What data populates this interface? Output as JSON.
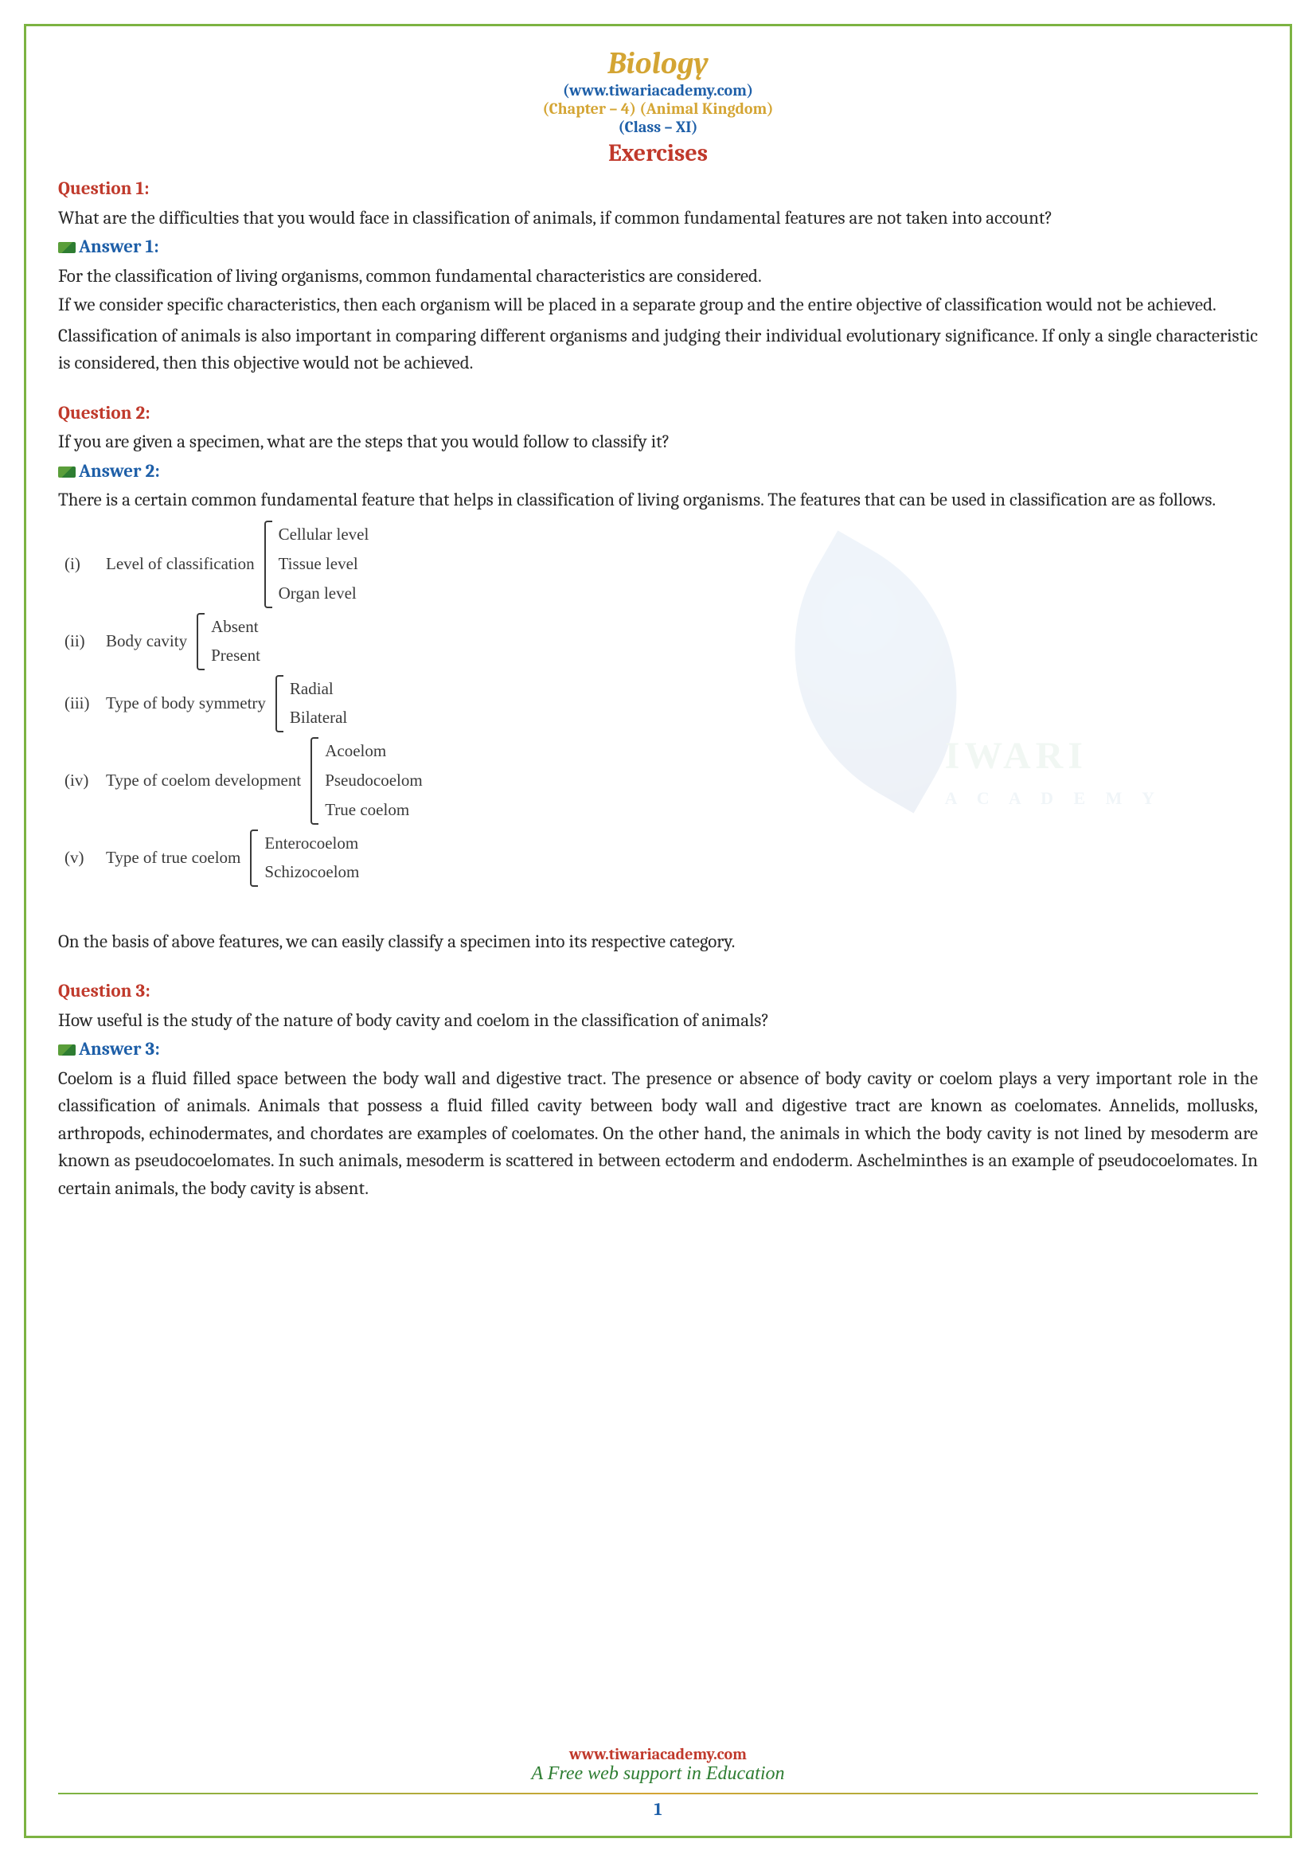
{
  "header": {
    "title": "Biology",
    "url": "(www.tiwariacademy.com)",
    "chapter": "(Chapter – 4) (Animal Kingdom)",
    "class": "(Class – XI)",
    "section": "Exercises"
  },
  "q1": {
    "label": "Question 1:",
    "text": "What are the difficulties that you would face in classification of animals, if common fundamental features are not taken into account?",
    "answer_label": "Answer 1:",
    "p1": "For the classification of living organisms, common fundamental characteristics are considered.",
    "p2": "If we consider specific characteristics, then each organism will be placed in a separate group and the entire objective of classification would not be achieved.",
    "p3": "Classification of animals is also important in comparing different organisms and judging their individual evolutionary significance. If only a single characteristic is considered, then this objective would not be achieved."
  },
  "q2": {
    "label": "Question 2:",
    "text": "If you are given a specimen, what are the steps that you would follow to classify it?",
    "answer_label": "Answer 2:",
    "p1": "There is a certain common fundamental feature that helps in classification of living organisms. The features that can be used in classification are as follows.",
    "classification": [
      {
        "num": "(i)",
        "label": "Level of classification",
        "items": [
          "Cellular level",
          "Tissue level",
          "Organ level"
        ]
      },
      {
        "num": "(ii)",
        "label": "Body cavity",
        "items": [
          "Absent",
          "Present"
        ]
      },
      {
        "num": "(iii)",
        "label": "Type of body symmetry",
        "items": [
          "Radial",
          "Bilateral"
        ]
      },
      {
        "num": "(iv)",
        "label": "Type of coelom development",
        "items": [
          "Acoelom",
          "Pseudocoelom",
          "True coelom"
        ]
      },
      {
        "num": "(v)",
        "label": "Type of true coelom",
        "items": [
          "Enterocoelom",
          "Schizocoelom"
        ]
      }
    ],
    "p2": "On the basis of above features, we can easily classify a specimen into its respective category."
  },
  "q3": {
    "label": "Question 3:",
    "text": "How useful is the study of the nature of body cavity and coelom in the classification of animals?",
    "answer_label": "Answer 3:",
    "p1": "Coelom is a fluid filled space between the body wall and digestive tract. The presence or absence of body cavity or coelom plays a very important role in the classification of animals. Animals that possess a fluid filled cavity between body wall and digestive tract are known as coelomates. Annelids, mollusks, arthropods, echinodermates, and chordates are examples of coelomates. On the other hand, the animals in which the body cavity is not lined by mesoderm are known as pseudocoelomates. In such animals, mesoderm is scattered in between ectoderm and endoderm. Aschelminthes is an example of pseudocoelomates. In certain animals, the body cavity is absent."
  },
  "watermark": {
    "line1": "IWARI",
    "line2": "A C A D E M Y"
  },
  "footer": {
    "url": "www.tiwariacademy.com",
    "tagline": "A Free web support in Education",
    "page": "1"
  },
  "colors": {
    "border": "#7cb342",
    "gold": "#d4a534",
    "blue": "#1e5fa8",
    "red": "#c0392b",
    "green": "#2e7d32",
    "text": "#2a2a2a"
  }
}
